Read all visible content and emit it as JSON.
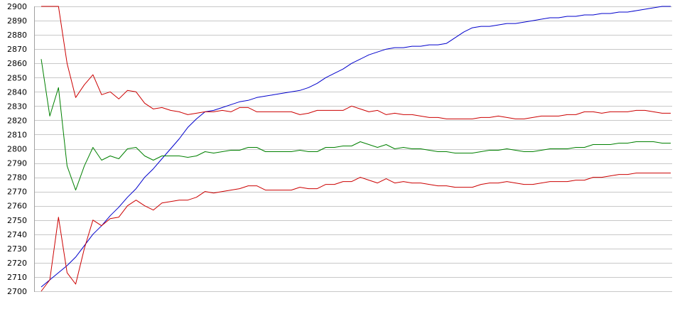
{
  "chart_data": {
    "type": "line",
    "title": "",
    "xlabel": "",
    "ylabel": "",
    "ylim": [
      2700,
      2900
    ],
    "yticks": [
      2700,
      2710,
      2720,
      2730,
      2740,
      2750,
      2760,
      2770,
      2780,
      2790,
      2800,
      2810,
      2820,
      2830,
      2840,
      2850,
      2860,
      2870,
      2880,
      2890,
      2900
    ],
    "grid": true,
    "legend": "none",
    "x": [
      1,
      2,
      3,
      4,
      5,
      6,
      7,
      8,
      9,
      10,
      11,
      12,
      13,
      14,
      15,
      16,
      17,
      18,
      19,
      20,
      21,
      22,
      23,
      24,
      25,
      26,
      27,
      28,
      29,
      30,
      31,
      32,
      33,
      34,
      35,
      36,
      37,
      38,
      39,
      40,
      41,
      42,
      43,
      44,
      45,
      46,
      47,
      48,
      49,
      50,
      51,
      52,
      53,
      54,
      55,
      56,
      57,
      58,
      59,
      60,
      61,
      62,
      63,
      64,
      65,
      66,
      67,
      68,
      69,
      70,
      71,
      72,
      73,
      74
    ],
    "series": [
      {
        "color": "#0000cc",
        "values": [
          2703,
          2708,
          2713,
          2718,
          2724,
          2732,
          2740,
          2746,
          2753,
          2759,
          2766,
          2772,
          2780,
          2786,
          2793,
          2800,
          2807,
          2815,
          2821,
          2826,
          2827,
          2829,
          2831,
          2833,
          2834,
          2836,
          2837,
          2838,
          2839,
          2840,
          2841,
          2843,
          2846,
          2850,
          2853,
          2856,
          2860,
          2863,
          2866,
          2868,
          2870,
          2871,
          2871,
          2872,
          2872,
          2873,
          2873,
          2874,
          2878,
          2882,
          2885,
          2886,
          2886,
          2887,
          2888,
          2888,
          2889,
          2890,
          2891,
          2892,
          2892,
          2893,
          2893,
          2894,
          2894,
          2895,
          2895,
          2896,
          2896,
          2897,
          2898,
          2899,
          2900,
          2900
        ]
      },
      {
        "color": "#cc0000",
        "values": [
          2900,
          2900,
          2900,
          2860,
          2836,
          2845,
          2852,
          2838,
          2840,
          2835,
          2841,
          2840,
          2832,
          2828,
          2829,
          2827,
          2826,
          2824,
          2825,
          2826,
          2826,
          2827,
          2826,
          2829,
          2829,
          2826,
          2826,
          2826,
          2826,
          2826,
          2824,
          2825,
          2827,
          2827,
          2827,
          2827,
          2830,
          2828,
          2826,
          2827,
          2824,
          2825,
          2824,
          2824,
          2823,
          2822,
          2822,
          2821,
          2821,
          2821,
          2821,
          2822,
          2822,
          2823,
          2822,
          2821,
          2821,
          2822,
          2823,
          2823,
          2823,
          2824,
          2824,
          2826,
          2826,
          2825,
          2826,
          2826,
          2826,
          2827,
          2827,
          2826,
          2825,
          2825
        ]
      },
      {
        "color": "#008000",
        "values": [
          2863,
          2823,
          2843,
          2788,
          2771,
          2788,
          2801,
          2792,
          2795,
          2793,
          2800,
          2801,
          2795,
          2792,
          2795,
          2795,
          2795,
          2794,
          2795,
          2798,
          2797,
          2798,
          2799,
          2799,
          2801,
          2801,
          2798,
          2798,
          2798,
          2798,
          2799,
          2798,
          2798,
          2801,
          2801,
          2802,
          2802,
          2805,
          2803,
          2801,
          2803,
          2800,
          2801,
          2800,
          2800,
          2799,
          2798,
          2798,
          2797,
          2797,
          2797,
          2798,
          2799,
          2799,
          2800,
          2799,
          2798,
          2798,
          2799,
          2800,
          2800,
          2800,
          2801,
          2801,
          2803,
          2803,
          2803,
          2804,
          2804,
          2805,
          2805,
          2805,
          2804,
          2804
        ]
      },
      {
        "color": "#cc0000",
        "values": [
          2700,
          2708,
          2752,
          2713,
          2705,
          2730,
          2750,
          2746,
          2751,
          2752,
          2760,
          2764,
          2760,
          2757,
          2762,
          2763,
          2764,
          2764,
          2766,
          2770,
          2769,
          2770,
          2771,
          2772,
          2774,
          2774,
          2771,
          2771,
          2771,
          2771,
          2773,
          2772,
          2772,
          2775,
          2775,
          2777,
          2777,
          2780,
          2778,
          2776,
          2779,
          2776,
          2777,
          2776,
          2776,
          2775,
          2774,
          2774,
          2773,
          2773,
          2773,
          2775,
          2776,
          2776,
          2777,
          2776,
          2775,
          2775,
          2776,
          2777,
          2777,
          2777,
          2778,
          2778,
          2780,
          2780,
          2781,
          2782,
          2782,
          2783,
          2783,
          2783,
          2783,
          2783
        ]
      }
    ]
  }
}
